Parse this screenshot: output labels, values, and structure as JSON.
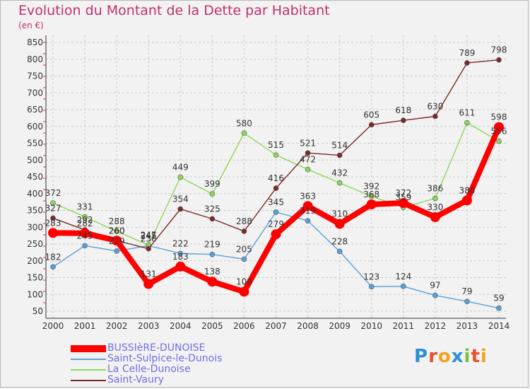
{
  "title": "Evolution du Montant de la Dette par Habitant",
  "subtitle": "(en €)",
  "colors": {
    "title": "#c0306e",
    "legend_text": "#6e6ee8",
    "grid": "#cccccc",
    "axis": "#333333"
  },
  "logo": {
    "letters": [
      "P",
      "r",
      "o",
      "x",
      "i",
      "t",
      "i"
    ],
    "colors": [
      "#2b8fd6",
      "#e6522c",
      "#f2a41c",
      "#2b8fd6",
      "#7cc13a",
      "#e6522c",
      "#f2a41c"
    ]
  },
  "chart_data": {
    "type": "line",
    "title": "Evolution du Montant de la Dette par Habitant",
    "subtitle": "(en €)",
    "x": [
      "2000",
      "2001",
      "2002",
      "2003",
      "2004",
      "2005",
      "2006",
      "2007",
      "2008",
      "2009",
      "2010",
      "2011",
      "2012",
      "2013",
      "2014"
    ],
    "yticks": [
      50,
      100,
      150,
      200,
      250,
      300,
      350,
      400,
      450,
      500,
      550,
      600,
      650,
      700,
      750,
      800,
      850
    ],
    "ylim": [
      40,
      860
    ],
    "grid": true,
    "legend_position": "bottom-left",
    "series": [
      {
        "name": "BUSSIèRE-DUNOISE",
        "color": "#ff0000",
        "values": [
          283,
          282,
          260,
          131,
          183,
          138,
          108,
          279,
          363,
          310,
          368,
          372,
          330,
          380,
          598
        ],
        "labels": [
          "283",
          "282",
          "260",
          "131",
          "183",
          "138",
          "108",
          "279",
          "363",
          "310",
          "368",
          "372",
          "330",
          "380",
          "598"
        ],
        "thick": true
      },
      {
        "name": "Saint-Sulpice-le-Dunois",
        "color": "#5aa0d6",
        "values": [
          182,
          245,
          229,
          245,
          222,
          219,
          205,
          345,
          319,
          228,
          123,
          124,
          97,
          79,
          59
        ],
        "labels": [
          "182",
          "245",
          "229",
          "245",
          "222",
          "219",
          "205",
          "345",
          "319",
          "228",
          "123",
          "124",
          "97",
          "79",
          "59"
        ]
      },
      {
        "name": "La Celle-Dunoise",
        "color": "#8ed65a",
        "values": [
          372,
          331,
          288,
          247,
          449,
          399,
          580,
          515,
          472,
          432,
          392,
          359,
          386,
          611,
          556
        ],
        "labels": [
          "372",
          "331",
          "288",
          "247",
          "449",
          "399",
          "580",
          "515",
          "472",
          "432",
          "392",
          "359",
          "386",
          "611",
          "556"
        ]
      },
      {
        "name": "Saint-Vaury",
        "color": "#7a2a2a",
        "values": [
          327,
          292,
          260,
          236,
          354,
          325,
          288,
          416,
          521,
          514,
          605,
          618,
          630,
          789,
          798
        ],
        "labels": [
          "327",
          "292",
          "260",
          "236",
          "354",
          "325",
          "288",
          "416",
          "521",
          "514",
          "605",
          "618",
          "630",
          "789",
          "798"
        ]
      }
    ]
  }
}
